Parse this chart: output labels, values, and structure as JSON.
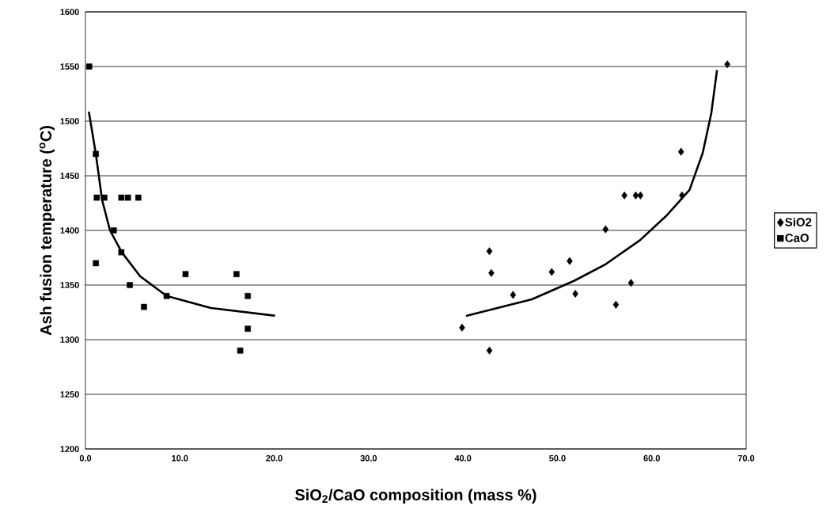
{
  "chart_data": {
    "type": "scatter",
    "xlabel": "SiO$_{2}$/CaO composition (mass %)",
    "ylabel": "Ash fusion temperature ($^{o}$C)",
    "xlim": [
      0,
      70
    ],
    "xticks": [
      {
        "value": 0,
        "label": "0.0"
      },
      {
        "value": 10,
        "label": "10.0"
      },
      {
        "value": 20,
        "label": "20.0"
      },
      {
        "value": 30,
        "label": "30.0"
      },
      {
        "value": 40,
        "label": "40.0"
      },
      {
        "value": 50,
        "label": "50.0"
      },
      {
        "value": 60,
        "label": "60.0"
      },
      {
        "value": 70,
        "label": "70.0"
      }
    ],
    "ylim": [
      1200,
      1600
    ],
    "yticks": [
      1200,
      1250,
      1300,
      1350,
      1400,
      1450,
      1500,
      1550,
      1600
    ],
    "grid": "y",
    "legend": "right",
    "series": [
      {
        "name": "SiO2",
        "marker": "diamond",
        "color": "#000000",
        "x": [
          68.0,
          63.1,
          63.2,
          57.1,
          58.3,
          58.8,
          55.1,
          42.8,
          43.0,
          49.4,
          51.3,
          45.3,
          51.9,
          57.8,
          56.2,
          39.9,
          42.8
        ],
        "values": [
          1552,
          1472,
          1432,
          1432,
          1432,
          1432,
          1401,
          1381,
          1361,
          1362,
          1372,
          1341,
          1342,
          1352,
          1332,
          1311,
          1290
        ]
      },
      {
        "name": "CaO",
        "marker": "square",
        "color": "#000000",
        "x": [
          0.4,
          1.1,
          1.1,
          1.2,
          2.0,
          3.8,
          4.5,
          5.6,
          3.0,
          3.8,
          4.7,
          6.2,
          8.6,
          10.6,
          16.0,
          17.2,
          17.2,
          16.4
        ],
        "values": [
          1550,
          1470,
          1370,
          1430,
          1430,
          1430,
          1430,
          1430,
          1400,
          1380,
          1350,
          1330,
          1340,
          1360,
          1360,
          1340,
          1310,
          1290
        ]
      },
      {
        "type": "line",
        "marker": "none",
        "line_style": "solid",
        "color": "#000000",
        "x": [
          0.37,
          1.1,
          1.76,
          2.6,
          3.85,
          5.8,
          8.6,
          13.3,
          20.0
        ],
        "values": [
          1508,
          1470,
          1428,
          1400,
          1380,
          1358,
          1340,
          1329,
          1322
        ]
      },
      {
        "type": "line",
        "marker": "none",
        "line_style": "solid",
        "color": "#000000",
        "x": [
          40.4,
          47.3,
          51.8,
          55.1,
          58.75,
          61.5,
          64.0,
          65.4,
          66.3,
          66.9
        ],
        "values": [
          1322,
          1337,
          1354,
          1369,
          1391,
          1413,
          1437,
          1471,
          1507,
          1546
        ]
      }
    ]
  }
}
